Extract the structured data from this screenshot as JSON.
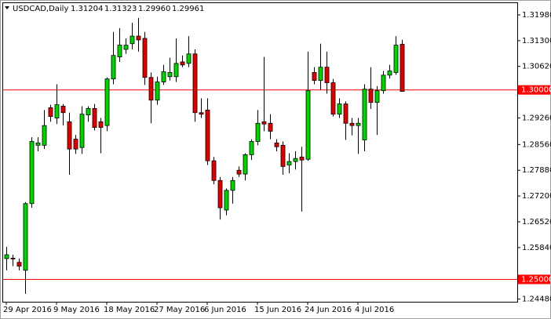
{
  "chart_data": {
    "type": "candlestick",
    "title": "USDCAD,Daily",
    "ohlc_labels": [
      "1.31204",
      "1.31323",
      "1.29960",
      "1.29961"
    ],
    "categories": [
      "29 Apr 2016",
      null,
      null,
      null,
      null,
      null,
      null,
      null,
      "9 May 2016",
      null,
      null,
      null,
      null,
      null,
      null,
      null,
      "18 May 2016",
      null,
      null,
      null,
      null,
      null,
      null,
      null,
      "27 May 2016",
      null,
      null,
      null,
      null,
      null,
      null,
      null,
      "6 Jun 2016",
      null,
      null,
      null,
      null,
      null,
      null,
      null,
      "15 Jun 2016",
      null,
      null,
      null,
      null,
      null,
      null,
      null,
      "24 Jun 2016",
      null,
      null,
      null,
      null,
      null,
      null,
      null,
      "4 Jul 2016",
      null,
      null,
      null,
      null,
      null,
      null,
      null
    ],
    "open": [
      1.2555,
      1.2556,
      1.2545,
      1.2524,
      1.27,
      1.2854,
      1.2854,
      1.2953,
      1.2926,
      1.2957,
      1.2916,
      1.287,
      1.2848,
      1.2934,
      1.2951,
      1.2916,
      1.2906,
      1.3029,
      1.3087,
      1.3107,
      1.3122,
      1.3142,
      1.3136,
      1.3033,
      1.2973,
      1.3021,
      1.3035,
      1.3035,
      1.3074,
      1.307,
      1.3095,
      1.294,
      1.2947,
      1.2813,
      1.2761,
      1.2683,
      1.2735,
      1.2788,
      1.2778,
      1.2829,
      1.2864,
      1.2916,
      1.2912,
      1.286,
      1.2854,
      1.2802,
      1.2811,
      1.2823,
      1.2817,
      1.3046,
      1.3025,
      1.306,
      1.3019,
      1.2936,
      1.2963,
      1.2912,
      1.2906,
      1.2868,
      1.3002,
      1.2967,
      1.2998,
      1.3039,
      1.3046,
      1.31204
    ],
    "high": [
      1.2586,
      1.2565,
      1.2555,
      1.2704,
      1.2875,
      1.2875,
      1.2947,
      1.2961,
      1.3015,
      1.2963,
      1.294,
      1.2881,
      1.2957,
      1.2957,
      1.2963,
      1.2926,
      1.3033,
      1.3153,
      1.3163,
      1.3136,
      1.3177,
      1.319,
      1.3153,
      1.3046,
      1.3035,
      1.3066,
      1.3085,
      1.3136,
      1.3091,
      1.3142,
      1.3107,
      1.2978,
      1.2978,
      1.2823,
      1.277,
      1.274,
      1.277,
      1.2798,
      1.2833,
      1.287,
      1.2947,
      1.3087,
      1.2936,
      1.287,
      1.2864,
      1.2833,
      1.2838,
      1.285,
      1.3101,
      1.306,
      1.3122,
      1.3101,
      1.3029,
      1.2978,
      1.297,
      1.2926,
      1.2926,
      1.3015,
      1.306,
      1.301,
      1.305,
      1.3066,
      1.3142,
      1.31323
    ],
    "low": [
      1.2524,
      1.2535,
      1.2524,
      1.2462,
      1.2689,
      1.2838,
      1.2844,
      1.2916,
      1.291,
      1.2906,
      1.2776,
      1.2831,
      1.2831,
      1.2916,
      1.2893,
      1.2833,
      1.2891,
      1.3015,
      1.3074,
      1.3095,
      1.3107,
      1.3101,
      1.3013,
      1.2912,
      1.2961,
      1.3013,
      1.3025,
      1.3021,
      1.306,
      1.306,
      1.2916,
      1.2926,
      1.2802,
      1.2751,
      1.2658,
      1.2669,
      1.27,
      1.277,
      1.2761,
      1.2815,
      1.2854,
      1.2891,
      1.287,
      1.2838,
      1.2776,
      1.278,
      1.279,
      1.2679,
      1.2813,
      1.3015,
      1.3,
      1.299,
      1.293,
      1.2926,
      1.2868,
      1.288,
      1.2831,
      1.2838,
      1.295,
      1.2881,
      1.299,
      1.303,
      1.304,
      1.2996
    ],
    "close": [
      1.2565,
      1.2555,
      1.2535,
      1.27,
      1.2864,
      1.286,
      1.2906,
      1.293,
      1.2961,
      1.294,
      1.2844,
      1.2844,
      1.2936,
      1.2951,
      1.2901,
      1.2901,
      1.3029,
      1.3091,
      1.3118,
      1.3118,
      1.3142,
      1.3132,
      1.3033,
      1.2973,
      1.3021,
      1.3048,
      1.3046,
      1.307,
      1.3066,
      1.3095,
      1.294,
      1.2936,
      1.2813,
      1.2761,
      1.2689,
      1.2735,
      1.2761,
      1.2778,
      1.2829,
      1.2864,
      1.2912,
      1.291,
      1.2891,
      1.285,
      1.2798,
      1.2811,
      1.2819,
      1.2815,
      1.2998,
      1.3025,
      1.306,
      1.3019,
      1.2936,
      1.2963,
      1.2912,
      1.2906,
      1.2912,
      1.3002,
      1.2967,
      1.2998,
      1.3039,
      1.305,
      1.3118,
      1.29961
    ],
    "up_color": "#00d400",
    "down_color": "#e00000",
    "hlines": [
      {
        "value": 1.3,
        "label": "1.30000",
        "color": "#ff0000"
      },
      {
        "value": 1.25,
        "label": "1.25000",
        "color": "#ff0000"
      }
    ],
    "ylim": [
      1.2441,
      1.3229
    ],
    "yticks": [
      {
        "value": 1.3198,
        "label": "1.31980"
      },
      {
        "value": 1.313,
        "label": "1.31300"
      },
      {
        "value": 1.3062,
        "label": "1.30620"
      },
      {
        "value": 1.2926,
        "label": "1.29260"
      },
      {
        "value": 1.2856,
        "label": "1.28560"
      },
      {
        "value": 1.2788,
        "label": "1.27880"
      },
      {
        "value": 1.272,
        "label": "1.27200"
      },
      {
        "value": 1.2652,
        "label": "1.26520"
      },
      {
        "value": 1.2584,
        "label": "1.25840"
      },
      {
        "value": 1.2448,
        "label": "1.24480"
      }
    ]
  }
}
